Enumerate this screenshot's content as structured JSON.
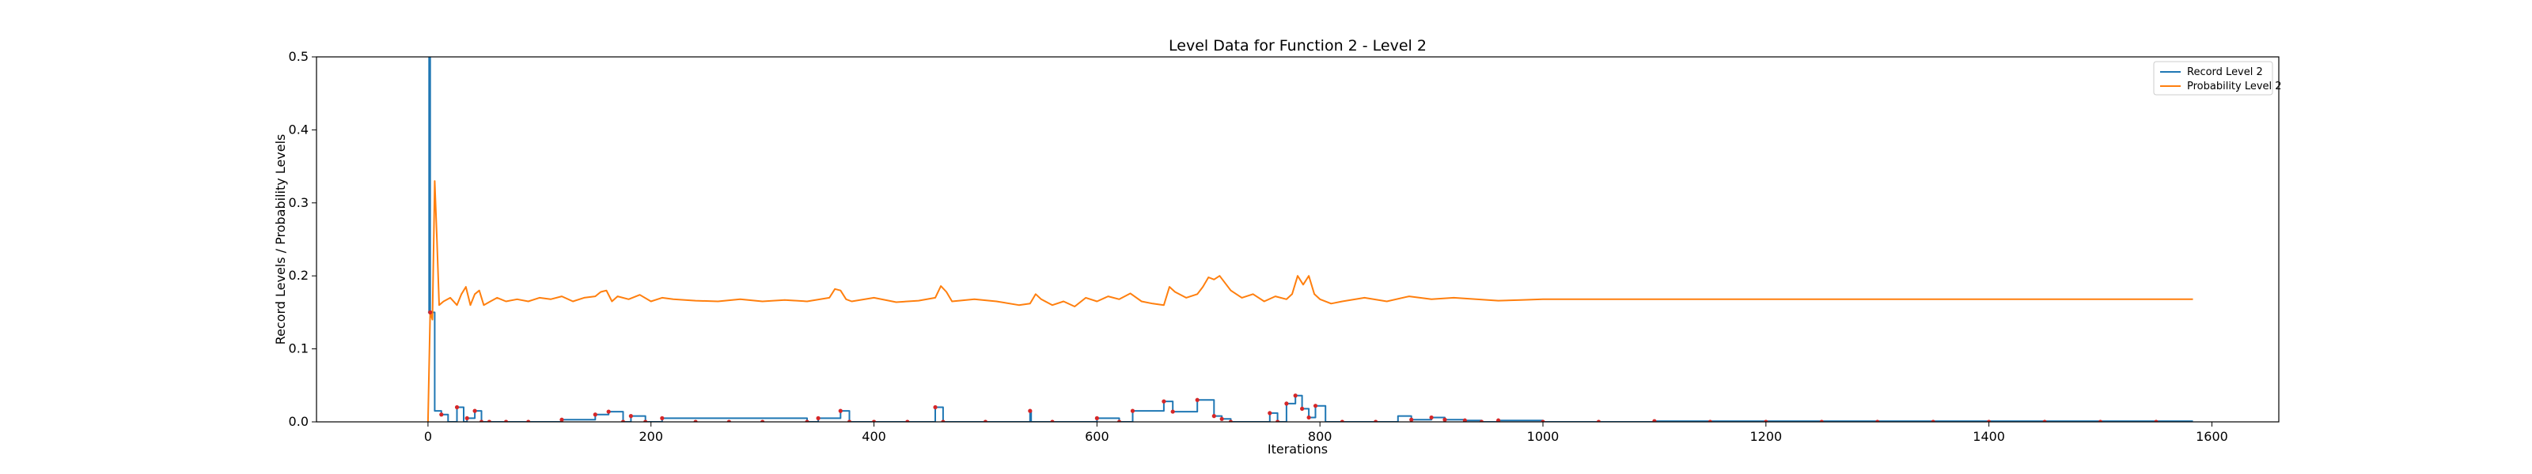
{
  "chart_data": {
    "type": "line",
    "title": "Level Data for Function 2 - Level 2",
    "xlabel": "Iterations",
    "ylabel": "Record Levels / Probability Levels",
    "xlim": [
      -100,
      1660
    ],
    "ylim": [
      0,
      0.5
    ],
    "xticks": [
      0,
      200,
      400,
      600,
      800,
      1000,
      1200,
      1400,
      1600
    ],
    "yticks": [
      0.0,
      0.1,
      0.2,
      0.3,
      0.4,
      0.5
    ],
    "xtick_labels": [
      "0",
      "200",
      "400",
      "600",
      "800",
      "1000",
      "1200",
      "1400",
      "1600"
    ],
    "ytick_labels": [
      "0.0",
      "0.1",
      "0.2",
      "0.3",
      "0.4",
      "0.5"
    ],
    "grid": false,
    "legend_position": "top-right",
    "colors": {
      "record": "#1f77b4",
      "probability": "#ff7f0e",
      "markers": "#d62728"
    },
    "series": [
      {
        "name": "Record Level 2",
        "style": "step",
        "x": [
          0,
          1,
          2,
          6,
          12,
          18,
          26,
          32,
          35,
          42,
          48,
          55,
          120,
          150,
          162,
          175,
          182,
          195,
          210,
          340,
          350,
          370,
          378,
          455,
          462,
          540,
          541,
          600,
          620,
          632,
          660,
          668,
          690,
          705,
          712,
          720,
          755,
          762,
          770,
          778,
          784,
          790,
          796,
          805,
          870,
          882,
          900,
          912,
          930,
          945,
          960,
          1000,
          1100,
          1583
        ],
        "y": [
          0.15,
          0.5,
          0.15,
          0.015,
          0.01,
          0.0,
          0.02,
          0.0,
          0.005,
          0.015,
          0.0,
          0.0,
          0.003,
          0.01,
          0.014,
          0.0,
          0.008,
          0.0,
          0.005,
          0.0,
          0.005,
          0.015,
          0.0,
          0.02,
          0.0,
          0.015,
          0.0,
          0.005,
          0.0,
          0.015,
          0.028,
          0.014,
          0.03,
          0.008,
          0.004,
          0.0,
          0.012,
          0.0,
          0.025,
          0.036,
          0.018,
          0.006,
          0.022,
          0.0,
          0.008,
          0.003,
          0.006,
          0.003,
          0.002,
          0.0,
          0.002,
          0.0,
          0.001,
          0.001
        ]
      },
      {
        "name": "Probability Level 2",
        "style": "line",
        "x": [
          0,
          2,
          4,
          6,
          8,
          10,
          14,
          20,
          26,
          30,
          34,
          38,
          42,
          46,
          50,
          56,
          62,
          70,
          80,
          90,
          100,
          110,
          120,
          130,
          140,
          150,
          155,
          160,
          165,
          170,
          180,
          190,
          200,
          210,
          220,
          240,
          260,
          280,
          300,
          320,
          340,
          360,
          365,
          370,
          375,
          380,
          400,
          420,
          440,
          455,
          460,
          465,
          470,
          490,
          510,
          530,
          540,
          545,
          550,
          560,
          570,
          580,
          590,
          600,
          610,
          620,
          630,
          640,
          650,
          660,
          665,
          670,
          680,
          690,
          695,
          700,
          705,
          710,
          720,
          730,
          740,
          750,
          760,
          770,
          775,
          780,
          785,
          790,
          795,
          800,
          810,
          820,
          840,
          860,
          880,
          900,
          920,
          940,
          960,
          980,
          1000,
          1020,
          1050,
          1100,
          1200,
          1300,
          1400,
          1500,
          1583
        ],
        "y": [
          0.0,
          0.15,
          0.14,
          0.33,
          0.25,
          0.16,
          0.165,
          0.17,
          0.16,
          0.175,
          0.185,
          0.16,
          0.175,
          0.18,
          0.16,
          0.165,
          0.17,
          0.165,
          0.168,
          0.165,
          0.17,
          0.168,
          0.172,
          0.165,
          0.17,
          0.172,
          0.178,
          0.18,
          0.165,
          0.172,
          0.168,
          0.174,
          0.165,
          0.17,
          0.168,
          0.166,
          0.165,
          0.168,
          0.165,
          0.167,
          0.165,
          0.17,
          0.182,
          0.18,
          0.168,
          0.165,
          0.17,
          0.164,
          0.166,
          0.17,
          0.186,
          0.178,
          0.165,
          0.168,
          0.165,
          0.16,
          0.162,
          0.175,
          0.168,
          0.16,
          0.165,
          0.158,
          0.17,
          0.165,
          0.172,
          0.168,
          0.176,
          0.165,
          0.162,
          0.16,
          0.185,
          0.178,
          0.17,
          0.175,
          0.185,
          0.198,
          0.195,
          0.2,
          0.18,
          0.17,
          0.175,
          0.165,
          0.172,
          0.168,
          0.175,
          0.2,
          0.188,
          0.2,
          0.175,
          0.168,
          0.162,
          0.165,
          0.17,
          0.165,
          0.172,
          0.168,
          0.17,
          0.168,
          0.166,
          0.167,
          0.168,
          0.168,
          0.168,
          0.168,
          0.168,
          0.168,
          0.168,
          0.168,
          0.168
        ]
      }
    ],
    "markers": {
      "x": [
        2,
        12,
        26,
        35,
        42,
        48,
        55,
        70,
        90,
        120,
        150,
        162,
        175,
        182,
        195,
        210,
        240,
        270,
        300,
        340,
        350,
        370,
        378,
        400,
        430,
        455,
        462,
        500,
        540,
        560,
        600,
        620,
        632,
        660,
        668,
        690,
        705,
        712,
        720,
        755,
        762,
        770,
        778,
        784,
        790,
        796,
        820,
        850,
        882,
        900,
        912,
        930,
        945,
        960,
        1000,
        1050,
        1100,
        1150,
        1200,
        1250,
        1300,
        1350,
        1400,
        1450,
        1500,
        1550
      ],
      "y": [
        0.15,
        0.01,
        0.02,
        0.005,
        0.015,
        0.0,
        0.0,
        0.0,
        0.0,
        0.003,
        0.01,
        0.014,
        0.0,
        0.008,
        0.0,
        0.005,
        0.0,
        0.0,
        0.0,
        0.0,
        0.005,
        0.015,
        0.0,
        0.0,
        0.0,
        0.02,
        0.0,
        0.0,
        0.015,
        0.0,
        0.005,
        0.0,
        0.015,
        0.028,
        0.014,
        0.03,
        0.008,
        0.004,
        0.0,
        0.012,
        0.0,
        0.025,
        0.036,
        0.018,
        0.006,
        0.022,
        0.0,
        0.0,
        0.003,
        0.006,
        0.003,
        0.002,
        0.0,
        0.002,
        0.0,
        0.0,
        0.001,
        0.0,
        0.0,
        0.0,
        0.0,
        0.0,
        0.0,
        0.0,
        0.0,
        0.0
      ]
    }
  }
}
